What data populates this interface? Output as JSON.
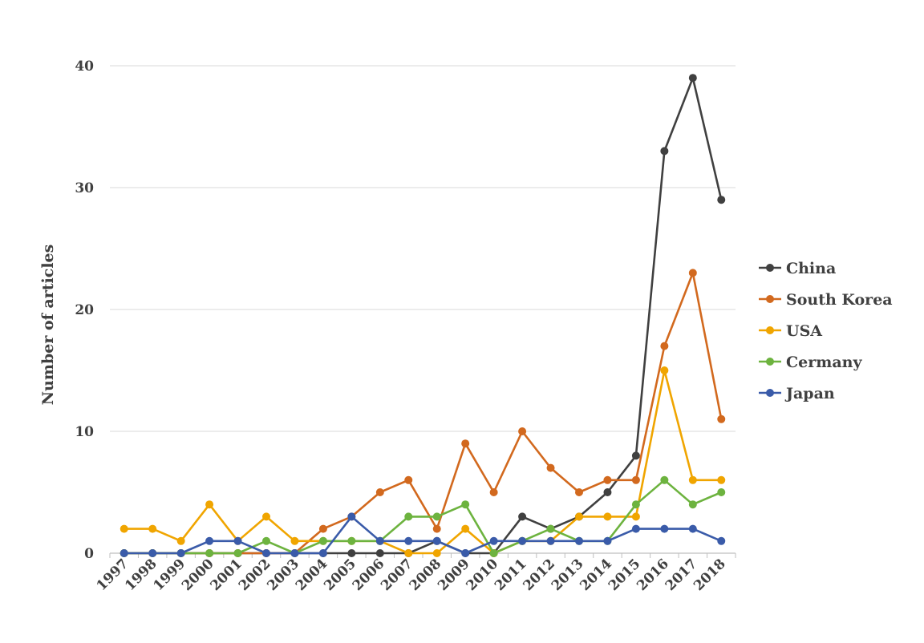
{
  "chart_data": {
    "type": "line",
    "title": "",
    "xlabel": "",
    "ylabel": "Number of articles",
    "ylim": [
      0,
      40
    ],
    "yticks": [
      "0",
      "10",
      "20",
      "30",
      "40"
    ],
    "grid": "horizontal",
    "legend_position": "right",
    "categories": [
      "1997",
      "1998",
      "1999",
      "2000",
      "2001",
      "2002",
      "2003",
      "2004",
      "2005",
      "2006",
      "2007",
      "2008",
      "2009",
      "2010",
      "2011",
      "2012",
      "2013",
      "2014",
      "2015",
      "2016",
      "2017",
      "2018"
    ],
    "series": [
      {
        "name": "China",
        "color": "#404040",
        "values": [
          0,
          0,
          0,
          0,
          0,
          0,
          0,
          0,
          0,
          0,
          0,
          1,
          0,
          0,
          3,
          2,
          3,
          5,
          8,
          33,
          39,
          29
        ]
      },
      {
        "name": "South Korea",
        "color": "#d2691e",
        "values": [
          0,
          0,
          0,
          0,
          0,
          0,
          0,
          2,
          3,
          5,
          6,
          2,
          9,
          5,
          10,
          7,
          5,
          6,
          6,
          17,
          23,
          11
        ]
      },
      {
        "name": "USA",
        "color": "#f0a500",
        "values": [
          2,
          2,
          1,
          4,
          1,
          3,
          1,
          1,
          1,
          1,
          0,
          0,
          2,
          0,
          1,
          1,
          3,
          3,
          3,
          15,
          6,
          6
        ]
      },
      {
        "name": "Cermany",
        "color": "#6db33f",
        "values": [
          0,
          0,
          0,
          0,
          0,
          1,
          0,
          1,
          1,
          1,
          3,
          3,
          4,
          0,
          1,
          2,
          1,
          1,
          4,
          6,
          4,
          5
        ]
      },
      {
        "name": "Japan",
        "color": "#3a5ba9",
        "values": [
          0,
          0,
          0,
          1,
          1,
          0,
          0,
          0,
          3,
          1,
          1,
          1,
          0,
          1,
          1,
          1,
          1,
          1,
          2,
          2,
          2,
          1
        ]
      }
    ]
  }
}
